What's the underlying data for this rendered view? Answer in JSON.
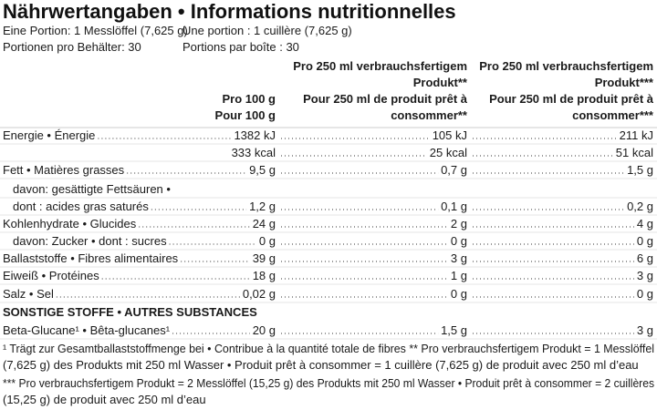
{
  "title": "Nährwertangaben • Informations nutritionnelles",
  "serving": [
    [
      "Eine Portion: 1 Messlöffel (7,625 g)",
      "Une portion : 1 cuillère (7,625 g)"
    ],
    [
      "Portionen pro Behälter: 30",
      "Portions par boîte : 30"
    ]
  ],
  "columns": [
    [
      "Pro 100 g",
      "Pour 100 g"
    ],
    [
      "Pro 250 ml verbrauchsfertigem",
      "Produkt**",
      "Pour 250 ml de produit prêt à",
      "consommer**"
    ],
    [
      "Pro 250 ml verbrauchsfertigem",
      "Produkt***",
      "Pour 250 ml de produit prêt à",
      "consommer***"
    ]
  ],
  "rows": [
    {
      "label": "Energie • Énergie",
      "values": [
        "1382 kJ",
        "105 kJ",
        "211 kJ"
      ]
    },
    {
      "values": [
        "333 kcal",
        "25 kcal",
        "51 kcal"
      ]
    },
    {
      "label": "Fett • Matières grasses",
      "values": [
        "9,5 g",
        "0,7 g",
        "1,5 g"
      ]
    },
    {
      "label": "davon: gesättigte Fettsäuren •"
    },
    {
      "label": "dont : acides gras saturés",
      "values": [
        "1,2 g",
        "0,1 g",
        "0,2 g"
      ]
    },
    {
      "label": "Kohlenhydrate • Glucides",
      "values": [
        "24 g",
        "2 g",
        "4 g"
      ]
    },
    {
      "label": "davon: Zucker • dont : sucres",
      "values": [
        "0 g",
        "0 g",
        "0 g"
      ]
    },
    {
      "label": "Ballaststoffe • Fibres alimentaires",
      "values": [
        "39 g",
        "3 g",
        "6 g"
      ]
    },
    {
      "label": "Eiweiß • Protéines",
      "values": [
        "18 g",
        "1 g",
        "3 g"
      ]
    },
    {
      "label": "Salz • Sel",
      "values": [
        "0,02 g",
        "0 g",
        "0 g"
      ]
    },
    {
      "heading": "SONSTIGE STOFFE • AUTRES SUBSTANCES"
    },
    {
      "label": "Beta-Glucane¹ • Bêta-glucanes¹",
      "values": [
        "20 g",
        "1,5 g",
        "3 g"
      ]
    }
  ],
  "footnotes": [
    "¹ Trägt zur Gesamtballaststoffmenge bei • Contribue à la quantité totale de fibres ** Pro verbrauchsfertigem Produkt = 1 Messlöffel",
    "(7,625 g) des Produkts mit 250 ml Wasser • Produit prêt à consommer = 1 cuillère (7,625 g) de produit avec 250 ml d’eau",
    "*** Pro verbrauchsfertigem Produkt = 2 Messlöffel (15,25 g) des Produkts mit 250 ml Wasser • Produit prêt à consommer = 2 cuillères",
    "(15,25 g) de produit avec 250 ml d’eau"
  ]
}
